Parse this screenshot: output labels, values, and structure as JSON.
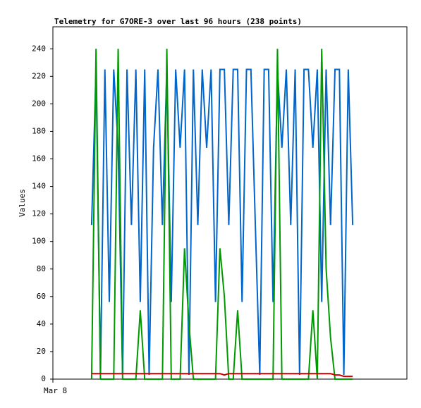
{
  "chart_data": {
    "type": "line",
    "title": "Telemetry for G7ORE-3 over last 96 hours (238 points)",
    "ylabel": "Values",
    "xlim": [
      0,
      96
    ],
    "xticks": [
      {
        "value": 0,
        "label": "Mar 8"
      }
    ],
    "ylim": [
      0,
      256
    ],
    "yticks": [
      0,
      20,
      40,
      60,
      80,
      100,
      120,
      140,
      160,
      180,
      200,
      220,
      240
    ],
    "x": [
      10.5,
      11.7,
      12.9,
      14.1,
      15.3,
      16.5,
      17.7,
      18.9,
      20.1,
      21.3,
      22.5,
      23.7,
      24.9,
      26.1,
      27.3,
      28.5,
      29.7,
      30.9,
      32.1,
      33.3,
      34.5,
      35.7,
      36.9,
      38.1,
      39.3,
      40.5,
      41.7,
      42.9,
      44.1,
      45.3,
      46.5,
      47.7,
      48.9,
      50.1,
      51.3,
      52.5,
      53.7,
      54.9,
      56.1,
      57.3,
      58.5,
      59.7,
      60.9,
      62.1,
      63.3,
      64.5,
      65.7,
      66.9,
      68.1,
      69.3,
      70.5,
      71.7,
      72.9,
      74.1,
      75.3,
      76.5,
      77.7,
      78.9,
      80.1,
      81.3
    ],
    "series": [
      {
        "color": "#0066cc",
        "values": [
          112,
          225,
          3,
          225,
          56,
          225,
          168,
          3,
          225,
          112,
          225,
          56,
          225,
          3,
          168,
          225,
          112,
          225,
          56,
          225,
          168,
          225,
          3,
          225,
          112,
          225,
          168,
          225,
          56,
          225,
          225,
          112,
          225,
          225,
          56,
          225,
          225,
          112,
          3,
          225,
          225,
          56,
          225,
          168,
          225,
          112,
          225,
          3,
          225,
          225,
          168,
          225,
          56,
          225,
          112,
          225,
          225,
          3,
          225,
          112
        ]
      },
      {
        "color": "#009900",
        "values": [
          0,
          240,
          0,
          0,
          0,
          0,
          240,
          0,
          0,
          0,
          0,
          50,
          0,
          0,
          0,
          0,
          0,
          240,
          0,
          0,
          0,
          95,
          40,
          0,
          0,
          0,
          0,
          0,
          0,
          95,
          60,
          0,
          0,
          50,
          0,
          0,
          0,
          0,
          0,
          0,
          0,
          0,
          240,
          0,
          0,
          0,
          0,
          0,
          0,
          0,
          50,
          0,
          240,
          80,
          30,
          0,
          0,
          0,
          0,
          0
        ]
      },
      {
        "color": "#cc0000",
        "values": [
          4,
          4,
          4,
          4,
          4,
          4,
          4,
          4,
          4,
          4,
          4,
          4,
          4,
          4,
          4,
          4,
          4,
          4,
          4,
          4,
          4,
          4,
          4,
          4,
          4,
          4,
          4,
          4,
          4,
          4,
          3,
          4,
          4,
          4,
          4,
          4,
          4,
          4,
          4,
          4,
          4,
          4,
          4,
          4,
          4,
          4,
          4,
          4,
          4,
          4,
          4,
          4,
          4,
          4,
          4,
          3,
          3,
          2,
          2,
          2
        ]
      }
    ]
  }
}
